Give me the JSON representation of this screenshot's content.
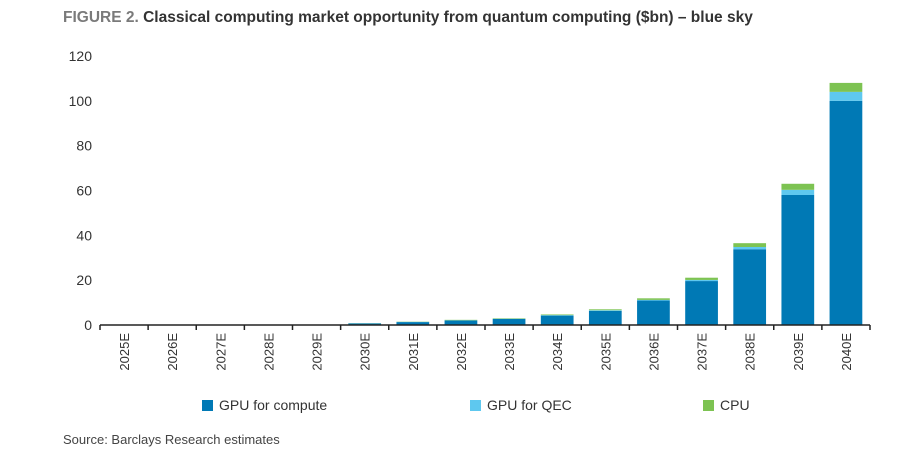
{
  "title_prefix": "FIGURE 2.",
  "title_main": "Classical computing market opportunity from quantum computing ($bn) – blue sky",
  "source": "Source: Barclays Research estimates",
  "chart_data": {
    "type": "bar",
    "stacked": true,
    "title": "Classical computing market opportunity from quantum computing ($bn) – blue sky",
    "categories": [
      "2025E",
      "2026E",
      "2027E",
      "2028E",
      "2029E",
      "2030E",
      "2031E",
      "2032E",
      "2033E",
      "2034E",
      "2035E",
      "2036E",
      "2037E",
      "2038E",
      "2039E",
      "2040E"
    ],
    "series": [
      {
        "name": "GPU for compute",
        "color": "#0079b5",
        "values": [
          0,
          0,
          0,
          0,
          0.2,
          0.7,
          1.3,
          2.0,
          2.7,
          4.2,
          6.3,
          10.9,
          19.6,
          33.8,
          58,
          100
        ]
      },
      {
        "name": "GPU for QEC",
        "color": "#5ec8ef",
        "values": [
          0,
          0,
          0,
          0,
          0,
          0.05,
          0.1,
          0.1,
          0.1,
          0.2,
          0.3,
          0.3,
          0.5,
          1.0,
          2.3,
          4
        ]
      },
      {
        "name": "CPU",
        "color": "#7dc352",
        "values": [
          0,
          0,
          0,
          0,
          0,
          0.05,
          0.1,
          0.2,
          0.2,
          0.3,
          0.4,
          0.7,
          1.0,
          1.7,
          2.7,
          4
        ]
      }
    ],
    "yticks": [
      0,
      20,
      40,
      60,
      80,
      100,
      120
    ],
    "ylim": [
      0,
      120
    ],
    "grid": false,
    "legend_position": "bottom"
  }
}
